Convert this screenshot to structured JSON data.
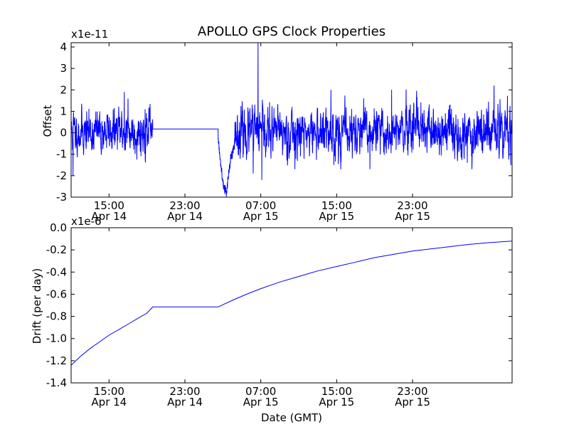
{
  "chart_data": [
    {
      "type": "line",
      "title": "APOLLO GPS Clock Properties",
      "ylabel": "Offset",
      "xlabel": "",
      "offset_label": "x1e-11",
      "ylim": [
        -3,
        4.2
      ],
      "y_ticks": [
        -3,
        -2,
        -1,
        0,
        1,
        2,
        3,
        4
      ],
      "x_range_hours": [
        0,
        46.5
      ],
      "x_ticks": [
        {
          "hour": 4,
          "line1": "15:00",
          "line2": "Apr 14"
        },
        {
          "hour": 12,
          "line1": "23:00",
          "line2": "Apr 14"
        },
        {
          "hour": 20,
          "line1": "07:00",
          "line2": "Apr 15"
        },
        {
          "hour": 28,
          "line1": "15:00",
          "line2": "Apr 15"
        },
        {
          "hour": 36,
          "line1": "23:00",
          "line2": "Apr 15"
        }
      ],
      "series": [
        {
          "name": "Offset",
          "color": "#0000ff",
          "segments": [
            {
              "type": "noise",
              "x_start": 0.0,
              "x_end": 8.6,
              "mean": 0.05,
              "sigma": 0.5,
              "seed": 11,
              "peaks": [
                {
                  "x": 5.6,
                  "y": 1.9
                },
                {
                  "x": 6.0,
                  "y": 1.6
                },
                {
                  "x": 0.2,
                  "y": -2.0
                },
                {
                  "x": 7.8,
                  "y": 1.1
                }
              ]
            },
            {
              "type": "line",
              "points": [
                [
                  8.6,
                  0.18
                ],
                [
                  15.5,
                  0.18
                ]
              ]
            },
            {
              "type": "dip",
              "x_start": 15.5,
              "x_end": 17.2,
              "trough_x": 16.4,
              "trough_y": -2.75,
              "start_y": -0.3,
              "end_y": -0.7,
              "seed": 5
            },
            {
              "type": "noise",
              "x_start": 17.2,
              "x_end": 46.5,
              "mean": 0.0,
              "sigma": 0.55,
              "seed": 23,
              "peaks": [
                {
                  "x": 19.7,
                  "y": 4.2
                },
                {
                  "x": 20.1,
                  "y": -2.2
                },
                {
                  "x": 19.2,
                  "y": -1.9
                },
                {
                  "x": 33.8,
                  "y": 2.0
                },
                {
                  "x": 44.6,
                  "y": 2.2
                },
                {
                  "x": 27.4,
                  "y": 2.0
                },
                {
                  "x": 23.6,
                  "y": -1.7
                },
                {
                  "x": 31.5,
                  "y": -1.7
                }
              ]
            }
          ]
        }
      ]
    },
    {
      "type": "line",
      "title": "",
      "ylabel": "Drift (per day)",
      "xlabel": "Date (GMT)",
      "offset_label": "x1e-6",
      "ylim": [
        -1.4,
        0.0
      ],
      "y_ticks": [
        -1.4,
        -1.2,
        -1.0,
        -0.8,
        -0.6,
        -0.4,
        -0.2,
        0.0
      ],
      "y_tick_labels": [
        "-1.4",
        "-1.2",
        "-1.0",
        "-0.8",
        "-0.6",
        "-0.4",
        "-0.2",
        "0.0"
      ],
      "x_range_hours": [
        0,
        46.5
      ],
      "x_ticks": [
        {
          "hour": 4,
          "line1": "15:00",
          "line2": "Apr 14"
        },
        {
          "hour": 12,
          "line1": "23:00",
          "line2": "Apr 14"
        },
        {
          "hour": 20,
          "line1": "07:00",
          "line2": "Apr 15"
        },
        {
          "hour": 28,
          "line1": "15:00",
          "line2": "Apr 15"
        },
        {
          "hour": 36,
          "line1": "23:00",
          "line2": "Apr 15"
        }
      ],
      "series": [
        {
          "name": "Drift",
          "color": "#0000ff",
          "points": [
            [
              0.0,
              -1.24
            ],
            [
              1.0,
              -1.16
            ],
            [
              2.0,
              -1.09
            ],
            [
              3.0,
              -1.03
            ],
            [
              4.0,
              -0.97
            ],
            [
              5.0,
              -0.92
            ],
            [
              6.0,
              -0.87
            ],
            [
              7.0,
              -0.82
            ],
            [
              8.0,
              -0.77
            ],
            [
              8.6,
              -0.715
            ],
            [
              15.5,
              -0.715
            ],
            [
              17.0,
              -0.655
            ],
            [
              18.5,
              -0.6
            ],
            [
              20.0,
              -0.55
            ],
            [
              22.0,
              -0.49
            ],
            [
              24.0,
              -0.44
            ],
            [
              26.0,
              -0.39
            ],
            [
              28.0,
              -0.35
            ],
            [
              30.0,
              -0.31
            ],
            [
              32.0,
              -0.27
            ],
            [
              34.0,
              -0.24
            ],
            [
              36.0,
              -0.21
            ],
            [
              38.0,
              -0.19
            ],
            [
              40.0,
              -0.17
            ],
            [
              42.0,
              -0.15
            ],
            [
              44.0,
              -0.135
            ],
            [
              46.5,
              -0.12
            ]
          ]
        }
      ]
    }
  ]
}
